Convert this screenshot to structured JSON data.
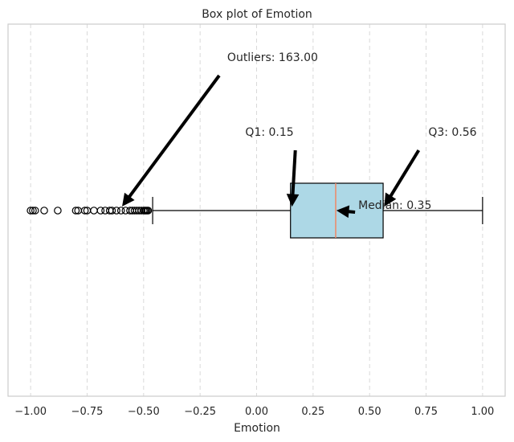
{
  "chart_data": {
    "type": "boxplot",
    "title": "Box plot of Emotion",
    "xlabel": "Emotion",
    "ylabel": "",
    "xlim": [
      -1.1,
      1.1
    ],
    "xticks": [
      -1.0,
      -0.75,
      -0.5,
      -0.25,
      0.0,
      0.25,
      0.5,
      0.75,
      1.0
    ],
    "xtick_labels": [
      "−1.00",
      "−0.75",
      "−0.50",
      "−0.25",
      "0.00",
      "0.25",
      "0.50",
      "0.75",
      "1.00"
    ],
    "grid": "x-dashed",
    "box": {
      "whisker_low": -0.46,
      "q1": 0.15,
      "median": 0.35,
      "q3": 0.56,
      "whisker_high": 1.0,
      "fill_color": "#add8e6",
      "median_color": "#ee8866"
    },
    "outliers": [
      -1.0,
      -0.99,
      -0.98,
      -0.94,
      -0.88,
      -0.8,
      -0.79,
      -0.76,
      -0.75,
      -0.72,
      -0.69,
      -0.67,
      -0.65,
      -0.64,
      -0.62,
      -0.6,
      -0.58,
      -0.56,
      -0.55,
      -0.54,
      -0.53,
      -0.52,
      -0.51,
      -0.5,
      -0.495,
      -0.49,
      -0.485,
      -0.48
    ],
    "annotations": [
      {
        "text": "Outliers: 163.00",
        "target_x": -0.6,
        "text_x": -0.13,
        "text_row": "top"
      },
      {
        "text": "Q1: 0.15",
        "target_x": 0.15,
        "text_x": -0.05,
        "text_row": "middle"
      },
      {
        "text": "Median: 0.35",
        "target_x": 0.35,
        "text_x": 0.45,
        "text_row": "box"
      },
      {
        "text": "Q3: 0.56",
        "target_x": 0.56,
        "text_x": 0.76,
        "text_row": "middle"
      }
    ]
  }
}
